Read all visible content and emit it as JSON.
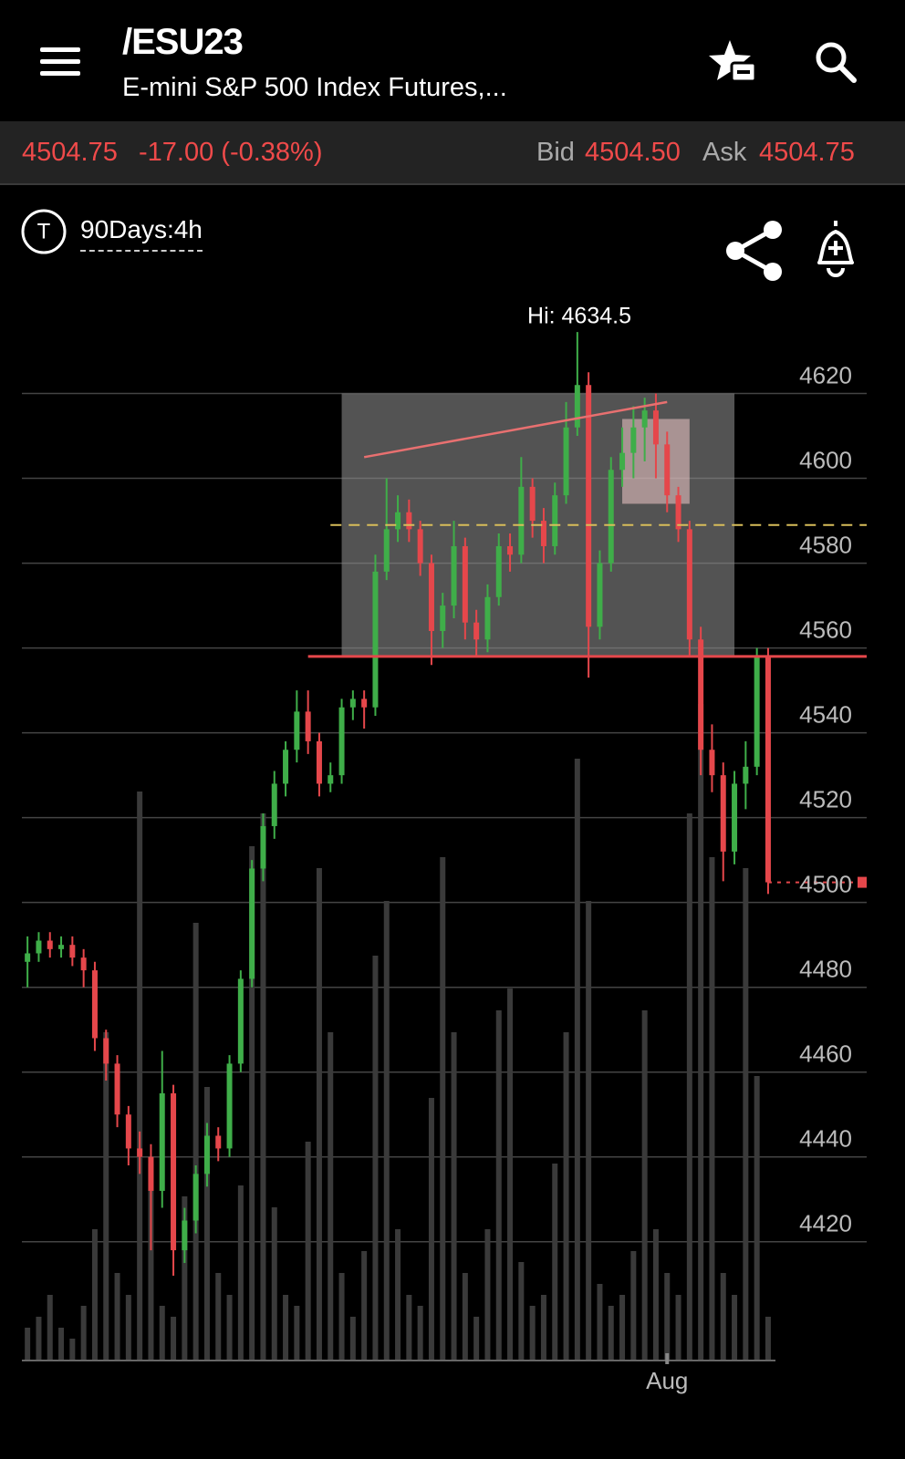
{
  "header": {
    "symbol": "/ESU23",
    "description": "E-mini S&P 500 Index Futures,..."
  },
  "quote": {
    "last": "4504.75",
    "change": "-17.00 (-0.38%)",
    "bid_label": "Bid",
    "bid": "4504.50",
    "ask_label": "Ask",
    "ask": "4504.75"
  },
  "toolbar": {
    "icon_letter": "T",
    "timeframe": "90Days:4h"
  },
  "chart_data": {
    "type": "candlestick",
    "categories": [
      null,
      null,
      null,
      null,
      null,
      null,
      null,
      null,
      null,
      null,
      null,
      null,
      null,
      null,
      null,
      null,
      null,
      null,
      null,
      null,
      null,
      null,
      null,
      null,
      null,
      null,
      null,
      null,
      null,
      null,
      null,
      null,
      null,
      null,
      null,
      null,
      null,
      null,
      null,
      null,
      null,
      null,
      null,
      null,
      null,
      null,
      null,
      null,
      null,
      null,
      null,
      null,
      null,
      null,
      null,
      null,
      null,
      "Aug",
      null,
      null,
      null,
      null,
      null,
      null,
      null,
      null,
      null
    ],
    "open": [
      4486,
      4488,
      4491,
      4489,
      4490,
      4487,
      4484,
      4468,
      4462,
      4450,
      4442,
      4440,
      4432,
      4455,
      4418,
      4425,
      4436,
      4445,
      4442,
      4462,
      4482,
      4508,
      4518,
      4528,
      4536,
      4545,
      4538,
      4528,
      4530,
      4546,
      4548,
      4546,
      4578,
      4588,
      4592,
      4588,
      4580,
      4564,
      4570,
      4584,
      4566,
      4562,
      4572,
      4584,
      4582,
      4598,
      4590,
      4584,
      4596,
      4612,
      4622,
      4565,
      4580,
      4602,
      4606,
      4612,
      4616,
      4608,
      4596,
      4588,
      4562,
      4536,
      4530,
      4512,
      4528,
      4532,
      4558
    ],
    "high": [
      4492,
      4493,
      4493,
      4492,
      4492,
      4489,
      4486,
      4470,
      4464,
      4452,
      4446,
      4443,
      4465,
      4457,
      4428,
      4438,
      4448,
      4447,
      4464,
      4484,
      4510,
      4521,
      4531,
      4538,
      4550,
      4550,
      4540,
      4533,
      4548,
      4550,
      4550,
      4582,
      4600,
      4596,
      4595,
      4590,
      4582,
      4573,
      4590,
      4586,
      4569,
      4575,
      4587,
      4587,
      4605,
      4600,
      4593,
      4599,
      4618,
      4634.5,
      4625,
      4583,
      4605,
      4612,
      4617,
      4619,
      4620,
      4611,
      4598,
      4590,
      4565,
      4542,
      4533,
      4531,
      4538,
      4560,
      4560
    ],
    "low": [
      4480,
      4486,
      4487,
      4487,
      4485,
      4480,
      4465,
      4458,
      4447,
      4438,
      4436,
      4418,
      4428,
      4412,
      4415,
      4422,
      4433,
      4439,
      4440,
      4460,
      4480,
      4505,
      4515,
      4525,
      4533,
      4535,
      4525,
      4526,
      4528,
      4543,
      4541,
      4544,
      4576,
      4585,
      4585,
      4577,
      4556,
      4560,
      4567,
      4562,
      4558,
      4559,
      4570,
      4578,
      4580,
      4586,
      4580,
      4582,
      4594,
      4610,
      4553,
      4562,
      4578,
      4598,
      4600,
      4604,
      4600,
      4592,
      4585,
      4558,
      4530,
      4526,
      4505,
      4509,
      4522,
      4530,
      4502
    ],
    "close": [
      4488,
      4491,
      4489,
      4490,
      4487,
      4484,
      4468,
      4462,
      4450,
      4442,
      4440,
      4432,
      4455,
      4418,
      4425,
      4436,
      4445,
      4442,
      4462,
      4482,
      4508,
      4518,
      4528,
      4536,
      4545,
      4538,
      4528,
      4530,
      4546,
      4548,
      4546,
      4578,
      4588,
      4592,
      4588,
      4580,
      4564,
      4570,
      4584,
      4566,
      4562,
      4572,
      4584,
      4582,
      4598,
      4590,
      4584,
      4596,
      4612,
      4622,
      4565,
      4580,
      4602,
      4606,
      4612,
      4616,
      4608,
      4596,
      4588,
      4562,
      4536,
      4530,
      4512,
      4528,
      4532,
      4558,
      4504.75
    ],
    "volume": [
      3,
      4,
      6,
      3,
      2,
      5,
      12,
      30,
      8,
      6,
      52,
      18,
      5,
      4,
      15,
      40,
      25,
      8,
      6,
      16,
      47,
      50,
      14,
      6,
      5,
      20,
      45,
      30,
      8,
      4,
      10,
      37,
      42,
      12,
      6,
      5,
      24,
      46,
      30,
      8,
      4,
      12,
      32,
      34,
      9,
      5,
      6,
      18,
      30,
      55,
      42,
      7,
      5,
      6,
      10,
      32,
      12,
      8,
      6,
      50,
      60,
      46,
      8,
      6,
      45,
      26,
      4
    ],
    "up_color": "#3fae49",
    "down_color": "#e5474b",
    "volume_color": "#3a3a3a",
    "ylim": [
      4392,
      4650
    ],
    "yticks": [
      4420,
      4440,
      4460,
      4480,
      4500,
      4520,
      4540,
      4560,
      4580,
      4600,
      4620
    ],
    "y2lim": [
      0,
      100
    ],
    "grid": true,
    "annotations": {
      "hi_label": "Hi: 4634.5",
      "hlines": [
        {
          "value": 4558,
          "from": 25,
          "color": "#e5474b",
          "dashed": false
        },
        {
          "value": 4589,
          "from": 27,
          "color": "#d8bd5a",
          "dashed": true
        }
      ],
      "regions": [
        {
          "from": 28,
          "to": 63,
          "low": 4558,
          "high": 4620,
          "color": "#8a8a8a",
          "opacity": 0.6
        },
        {
          "from": 53,
          "to": 59,
          "low": 4594,
          "high": 4614,
          "color": "#f0c8c8",
          "opacity": 0.55
        }
      ],
      "trendline": {
        "from": 30,
        "to": 57,
        "start": 4605,
        "end": 4618,
        "color": "#e87070"
      }
    }
  }
}
